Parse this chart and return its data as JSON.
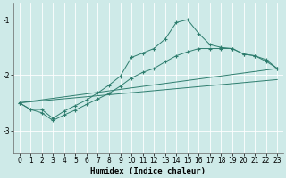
{
  "xlabel": "Humidex (Indice chaleur)",
  "xlim": [
    -0.5,
    23.5
  ],
  "ylim": [
    -3.4,
    -0.7
  ],
  "yticks": [
    -3,
    -2,
    -1
  ],
  "xticks": [
    0,
    1,
    2,
    3,
    4,
    5,
    6,
    7,
    8,
    9,
    10,
    11,
    12,
    13,
    14,
    15,
    16,
    17,
    18,
    19,
    20,
    21,
    22,
    23
  ],
  "bg_color": "#ceeae8",
  "grid_color": "#ffffff",
  "line_color": "#2e7d6e",
  "line1": {
    "x": [
      0,
      1,
      2,
      3,
      4,
      5,
      6,
      7,
      8,
      9,
      10,
      11,
      12,
      13,
      14,
      15,
      16,
      17,
      18,
      19,
      20,
      21,
      22,
      23
    ],
    "y": [
      -2.5,
      -2.62,
      -2.62,
      -2.78,
      -2.65,
      -2.55,
      -2.45,
      -2.32,
      -2.18,
      -2.02,
      -1.68,
      -1.6,
      -1.52,
      -1.35,
      -1.05,
      -1.0,
      -1.25,
      -1.45,
      -1.5,
      -1.52,
      -1.62,
      -1.65,
      -1.72,
      -1.88
    ]
  },
  "line2": {
    "x": [
      0,
      1,
      2,
      3,
      4,
      5,
      6,
      7,
      8,
      9,
      10,
      11,
      12,
      13,
      14,
      15,
      16,
      17,
      18,
      19,
      20,
      21,
      22,
      23
    ],
    "y": [
      -2.5,
      -2.62,
      -2.68,
      -2.82,
      -2.72,
      -2.63,
      -2.53,
      -2.43,
      -2.33,
      -2.2,
      -2.05,
      -1.95,
      -1.88,
      -1.76,
      -1.65,
      -1.58,
      -1.52,
      -1.52,
      -1.52,
      -1.52,
      -1.62,
      -1.65,
      -1.75,
      -1.88
    ]
  },
  "line3": {
    "x": [
      0,
      23
    ],
    "y": [
      -2.5,
      -1.88
    ]
  },
  "line4": {
    "x": [
      0,
      23
    ],
    "y": [
      -2.5,
      -2.08
    ]
  },
  "figsize": [
    3.2,
    2.0
  ],
  "dpi": 100
}
